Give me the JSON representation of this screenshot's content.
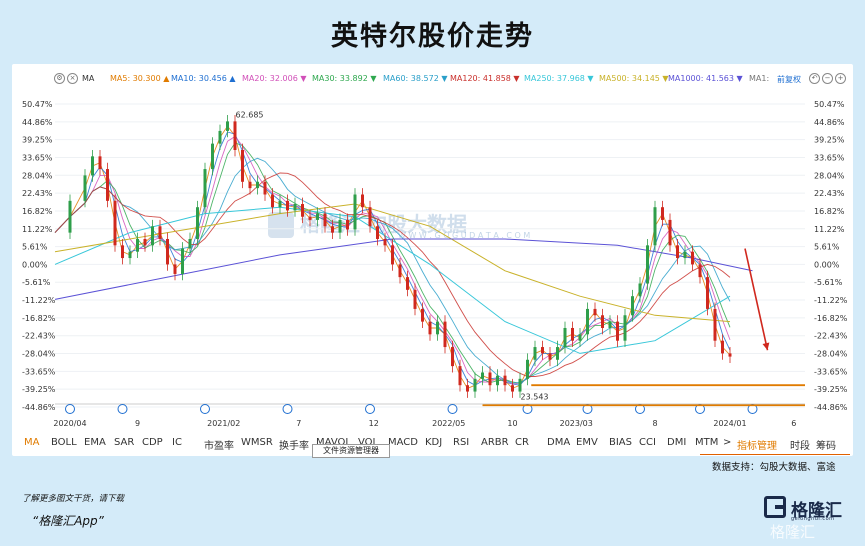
{
  "title": "英特尔股价走势",
  "ma_bar": {
    "indicator": "MA",
    "items": [
      {
        "label": "MA5: 30.300",
        "dir": "▲",
        "color": "#e07b00"
      },
      {
        "label": "MA10: 30.456",
        "dir": "▲",
        "color": "#1f6fd1"
      },
      {
        "label": "MA20: 32.006",
        "dir": "▼",
        "color": "#d14fb8"
      },
      {
        "label": "MA30: 33.892",
        "dir": "▼",
        "color": "#2fa84f"
      },
      {
        "label": "MA60: 38.572",
        "dir": "▼",
        "color": "#2a9fc9"
      },
      {
        "label": "MA120: 41.858",
        "dir": "▼",
        "color": "#c9302c"
      },
      {
        "label": "MA250: 37.968",
        "dir": "▼",
        "color": "#38c7d9"
      },
      {
        "label": "MA500: 34.145",
        "dir": "▼",
        "color": "#c9b22a"
      },
      {
        "label": "MA1000: 41.563",
        "dir": "▼",
        "color": "#5b52d6"
      },
      {
        "label": "MA1:",
        "dir": "",
        "color": "#777"
      }
    ],
    "right_action": "前复权"
  },
  "chart_data": {
    "type": "line",
    "chart_type": "candlestick with moving averages",
    "y_ticks": [
      "50.47%",
      "44.86%",
      "39.25%",
      "33.65%",
      "28.04%",
      "22.43%",
      "16.82%",
      "11.22%",
      "5.61%",
      "0.00%",
      "-5.61%",
      "-11.22%",
      "-16.82%",
      "-22.43%",
      "-28.04%",
      "-33.65%",
      "-39.25%",
      "-44.86%"
    ],
    "ylim": [
      -44.86,
      50.47
    ],
    "x_ticks": [
      {
        "label": "2020/04",
        "t": 0.02
      },
      {
        "label": "9",
        "t": 0.11
      },
      {
        "label": "2021/02",
        "t": 0.225
      },
      {
        "label": "7",
        "t": 0.325
      },
      {
        "label": "12",
        "t": 0.425
      },
      {
        "label": "2022/05",
        "t": 0.525
      },
      {
        "label": "10",
        "t": 0.61
      },
      {
        "label": "2023/03",
        "t": 0.695
      },
      {
        "label": "8",
        "t": 0.8
      },
      {
        "label": "2024/01",
        "t": 0.9
      },
      {
        "label": "6",
        "t": 0.985
      }
    ],
    "price_pct": [
      [
        0.0,
        10
      ],
      [
        0.02,
        20
      ],
      [
        0.04,
        28
      ],
      [
        0.05,
        34
      ],
      [
        0.06,
        30
      ],
      [
        0.07,
        20
      ],
      [
        0.08,
        6
      ],
      [
        0.09,
        2
      ],
      [
        0.1,
        4
      ],
      [
        0.11,
        8
      ],
      [
        0.12,
        6
      ],
      [
        0.13,
        12
      ],
      [
        0.14,
        8
      ],
      [
        0.15,
        0
      ],
      [
        0.16,
        -3
      ],
      [
        0.17,
        5
      ],
      [
        0.18,
        8
      ],
      [
        0.19,
        18
      ],
      [
        0.2,
        30
      ],
      [
        0.21,
        38
      ],
      [
        0.22,
        42
      ],
      [
        0.23,
        45
      ],
      [
        0.24,
        36
      ],
      [
        0.25,
        26
      ],
      [
        0.26,
        24
      ],
      [
        0.27,
        26
      ],
      [
        0.28,
        22
      ],
      [
        0.29,
        18
      ],
      [
        0.3,
        20
      ],
      [
        0.31,
        17
      ],
      [
        0.32,
        19
      ],
      [
        0.33,
        15
      ],
      [
        0.34,
        14
      ],
      [
        0.35,
        16
      ],
      [
        0.36,
        12
      ],
      [
        0.37,
        10
      ],
      [
        0.38,
        14
      ],
      [
        0.39,
        11
      ],
      [
        0.4,
        22
      ],
      [
        0.41,
        18
      ],
      [
        0.42,
        12
      ],
      [
        0.43,
        8
      ],
      [
        0.44,
        6
      ],
      [
        0.45,
        0
      ],
      [
        0.46,
        -4
      ],
      [
        0.47,
        -8
      ],
      [
        0.48,
        -14
      ],
      [
        0.49,
        -18
      ],
      [
        0.5,
        -22
      ],
      [
        0.51,
        -18
      ],
      [
        0.52,
        -26
      ],
      [
        0.53,
        -32
      ],
      [
        0.54,
        -38
      ],
      [
        0.55,
        -40
      ],
      [
        0.56,
        -36
      ],
      [
        0.57,
        -34
      ],
      [
        0.58,
        -38
      ],
      [
        0.59,
        -35
      ],
      [
        0.6,
        -38
      ],
      [
        0.61,
        -40
      ],
      [
        0.62,
        -36
      ],
      [
        0.63,
        -30
      ],
      [
        0.64,
        -26
      ],
      [
        0.65,
        -28
      ],
      [
        0.66,
        -30
      ],
      [
        0.67,
        -26
      ],
      [
        0.68,
        -20
      ],
      [
        0.69,
        -24
      ],
      [
        0.7,
        -22
      ],
      [
        0.71,
        -14
      ],
      [
        0.72,
        -16
      ],
      [
        0.73,
        -20
      ],
      [
        0.74,
        -18
      ],
      [
        0.75,
        -24
      ],
      [
        0.76,
        -16
      ],
      [
        0.77,
        -10
      ],
      [
        0.78,
        -6
      ],
      [
        0.79,
        6
      ],
      [
        0.8,
        18
      ],
      [
        0.81,
        14
      ],
      [
        0.82,
        6
      ],
      [
        0.83,
        2
      ],
      [
        0.84,
        4
      ],
      [
        0.85,
        0
      ],
      [
        0.86,
        -4
      ],
      [
        0.87,
        -14
      ],
      [
        0.88,
        -24
      ],
      [
        0.89,
        -28
      ],
      [
        0.9,
        -29
      ]
    ],
    "series": [
      {
        "name": "MA5",
        "color": "#e07b00",
        "values": []
      },
      {
        "name": "MA250",
        "color": "#38c7d9"
      },
      {
        "name": "MA500",
        "color": "#c9b22a"
      },
      {
        "name": "MA1000",
        "color": "#5b52d6"
      }
    ],
    "annotations": [
      {
        "text": "62.685",
        "x": 0.23,
        "y": 45
      },
      {
        "text": "23.543",
        "x": 0.61,
        "y": -40
      }
    ],
    "support_lines": [
      {
        "y": -38.0,
        "x_start": 0.635,
        "color": "#e07b00"
      },
      {
        "y": -44.3,
        "x_start": 0.57,
        "color": "#e07b00"
      }
    ],
    "arrow": {
      "from": [
        0.92,
        5
      ],
      "to": [
        0.95,
        -27
      ],
      "color": "#d0281e"
    }
  },
  "indicators": [
    "MA",
    "BOLL",
    "EMA",
    "SAR",
    "CDP",
    "IC",
    "市盈率",
    "WMSR",
    "换手率",
    "MAVOL",
    "VOL",
    "MACD",
    "KDJ",
    "RSI",
    "ARBR",
    "CR",
    "DMA",
    "EMV",
    "BIAS",
    "CCI",
    "DMI",
    "MTM"
  ],
  "indicator_more": ">",
  "indicator_manage": "指标管理",
  "indicator_right": [
    "时段",
    "筹码"
  ],
  "tooltip": "文件资源管理器",
  "source": "数据支持：勾股大数据、富途",
  "footer": {
    "note": "了解更多图文干货，请下载",
    "app": "“格隆汇App”"
  },
  "brand": {
    "name": "格隆汇",
    "sub": "gelonghui.com",
    "watermark": "格隆汇"
  },
  "watermark": {
    "name": "格隆汇 勾股大数据",
    "sub": "W W W . G O G U D A T A . C O M"
  }
}
